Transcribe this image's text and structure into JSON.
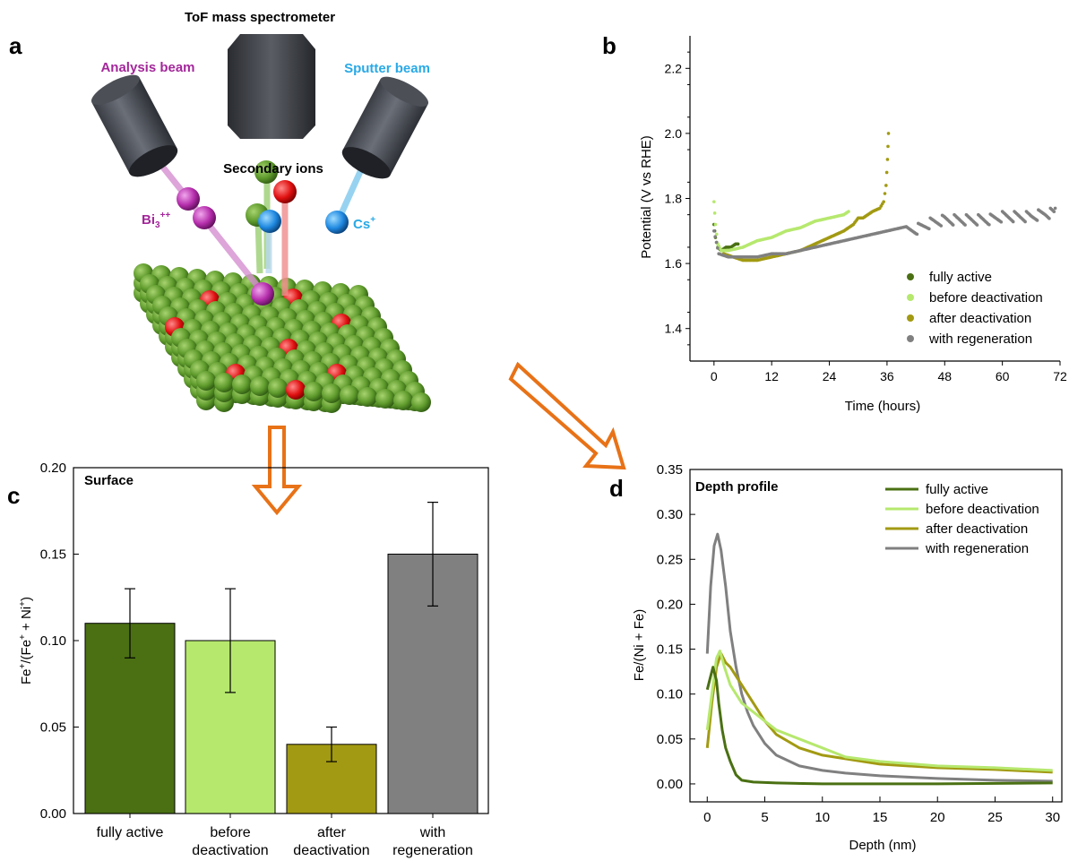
{
  "panel_labels": {
    "a": "a",
    "b": "b",
    "c": "c",
    "d": "d"
  },
  "diagram": {
    "spectrometer_label": "ToF mass spectrometer",
    "analysis_beam_label": "Analysis beam",
    "sputter_beam_label": "Sputter beam",
    "secondary_ions_label": "Secondary ions",
    "bi_label": "Bi",
    "bi_sub": "3",
    "bi_sup": "++",
    "cs_label": "Cs",
    "cs_sup": "+"
  },
  "colors": {
    "fully_active": "#4a7013",
    "before_deactivation": "#b6e86e",
    "after_deactivation": "#a29a12",
    "with_regeneration": "#808080",
    "arrow": "#e87217",
    "analysis_beam": "#a3279a",
    "sputter_beam": "#29a9e6"
  },
  "chart_data": [
    {
      "id": "b",
      "type": "scatter",
      "xlabel": "Time (hours)",
      "ylabel": "Potential (V vs RHE)",
      "xlim": [
        -5,
        72
      ],
      "ylim": [
        1.3,
        2.3
      ],
      "xticks": [
        0,
        12,
        24,
        36,
        48,
        60,
        72
      ],
      "yticks": [
        1.4,
        1.6,
        1.8,
        2.0,
        2.2
      ],
      "legend_position": "bottom-right",
      "series": [
        {
          "name": "fully active",
          "color": "#4a7013",
          "points": [
            [
              0,
              1.72
            ],
            [
              0.3,
              1.68
            ],
            [
              0.8,
              1.65
            ],
            [
              1.5,
              1.64
            ],
            [
              2.5,
              1.65
            ],
            [
              3.5,
              1.65
            ],
            [
              4.5,
              1.66
            ],
            [
              5,
              1.66
            ]
          ]
        },
        {
          "name": "before deactivation",
          "color": "#b6e86e",
          "points": [
            [
              0,
              1.79
            ],
            [
              0.3,
              1.72
            ],
            [
              0.8,
              1.66
            ],
            [
              1.5,
              1.64
            ],
            [
              3,
              1.64
            ],
            [
              6,
              1.65
            ],
            [
              9,
              1.67
            ],
            [
              12,
              1.68
            ],
            [
              15,
              1.7
            ],
            [
              18,
              1.71
            ],
            [
              21,
              1.73
            ],
            [
              24,
              1.74
            ],
            [
              27,
              1.75
            ],
            [
              28,
              1.76
            ]
          ]
        },
        {
          "name": "after deactivation",
          "color": "#a29a12",
          "points": [
            [
              2,
              1.63
            ],
            [
              4,
              1.62
            ],
            [
              6,
              1.61
            ],
            [
              9,
              1.61
            ],
            [
              12,
              1.62
            ],
            [
              15,
              1.63
            ],
            [
              18,
              1.64
            ],
            [
              21,
              1.66
            ],
            [
              24,
              1.68
            ],
            [
              27,
              1.7
            ],
            [
              29,
              1.72
            ],
            [
              30,
              1.74
            ],
            [
              31,
              1.74
            ],
            [
              33,
              1.76
            ],
            [
              34.5,
              1.77
            ],
            [
              35.3,
              1.79
            ],
            [
              35.8,
              1.84
            ],
            [
              36.1,
              1.92
            ],
            [
              36.3,
              2.0
            ]
          ]
        },
        {
          "name": "with regeneration",
          "color": "#808080",
          "points": [
            [
              0,
              1.7
            ],
            [
              1,
              1.63
            ],
            [
              3,
              1.62
            ],
            [
              6,
              1.62
            ],
            [
              9,
              1.62
            ],
            [
              12,
              1.63
            ],
            [
              15,
              1.63
            ],
            [
              18,
              1.64
            ],
            [
              21,
              1.65
            ],
            [
              24,
              1.66
            ],
            [
              27,
              1.67
            ],
            [
              30,
              1.68
            ],
            [
              33,
              1.69
            ],
            [
              36,
              1.7
            ],
            [
              39,
              1.71
            ],
            [
              42,
              1.72
            ],
            [
              45,
              1.74
            ],
            [
              48,
              1.75
            ],
            [
              51,
              1.75
            ],
            [
              54,
              1.75
            ],
            [
              57,
              1.75
            ],
            [
              60,
              1.76
            ],
            [
              63,
              1.76
            ],
            [
              66,
              1.76
            ],
            [
              69,
              1.77
            ],
            [
              71,
              1.77
            ]
          ]
        }
      ]
    },
    {
      "id": "c",
      "type": "bar",
      "title": "Surface",
      "ylabel": "Fe⁺/(Fe⁺ + Ni⁺)",
      "ylim": [
        0,
        0.2
      ],
      "yticks": [
        "0.00",
        "0.05",
        "0.10",
        "0.15",
        "0.20"
      ],
      "categories": [
        [
          "fully active"
        ],
        [
          "before",
          "deactivation"
        ],
        [
          "after",
          "deactivation"
        ],
        [
          "with",
          "regeneration"
        ]
      ],
      "values": [
        0.11,
        0.1,
        0.04,
        0.15
      ],
      "errors": [
        0.02,
        0.03,
        0.01,
        0.03
      ],
      "colors": [
        "#4a7013",
        "#b6e86e",
        "#a29a12",
        "#808080"
      ]
    },
    {
      "id": "d",
      "type": "line",
      "title": "Depth profile",
      "xlabel": "Depth (nm)",
      "ylabel": "Fe/(Ni + Fe)",
      "xlim": [
        -1.5,
        30.8
      ],
      "ylim": [
        -0.02,
        0.35
      ],
      "xticks": [
        0,
        5,
        10,
        15,
        20,
        25,
        30
      ],
      "yticks": [
        "0.00",
        "0.05",
        "0.10",
        "0.15",
        "0.20",
        "0.25",
        "0.30",
        "0.35"
      ],
      "legend_position": "top-right",
      "series": [
        {
          "name": "fully active",
          "color": "#4a7013",
          "points": [
            [
              0,
              0.105
            ],
            [
              0.3,
              0.12
            ],
            [
              0.5,
              0.13
            ],
            [
              0.8,
              0.115
            ],
            [
              1.0,
              0.09
            ],
            [
              1.3,
              0.06
            ],
            [
              1.6,
              0.04
            ],
            [
              2.0,
              0.025
            ],
            [
              2.5,
              0.01
            ],
            [
              3,
              0.004
            ],
            [
              4,
              0.002
            ],
            [
              6,
              0.001
            ],
            [
              10,
              0.0
            ],
            [
              20,
              0.0
            ],
            [
              30,
              0.001
            ]
          ]
        },
        {
          "name": "before deactivation",
          "color": "#b6e86e",
          "points": [
            [
              0,
              0.06
            ],
            [
              0.4,
              0.1
            ],
            [
              0.8,
              0.14
            ],
            [
              1.1,
              0.148
            ],
            [
              1.5,
              0.13
            ],
            [
              2,
              0.11
            ],
            [
              3,
              0.09
            ],
            [
              4,
              0.08
            ],
            [
              5,
              0.07
            ],
            [
              6,
              0.06
            ],
            [
              8,
              0.05
            ],
            [
              10,
              0.04
            ],
            [
              12,
              0.03
            ],
            [
              15,
              0.025
            ],
            [
              20,
              0.02
            ],
            [
              25,
              0.018
            ],
            [
              30,
              0.015
            ]
          ]
        },
        {
          "name": "after deactivation",
          "color": "#a29a12",
          "points": [
            [
              0,
              0.04
            ],
            [
              0.4,
              0.09
            ],
            [
              0.8,
              0.13
            ],
            [
              1.2,
              0.145
            ],
            [
              1.6,
              0.135
            ],
            [
              2,
              0.13
            ],
            [
              3,
              0.11
            ],
            [
              4,
              0.09
            ],
            [
              5,
              0.07
            ],
            [
              6,
              0.055
            ],
            [
              8,
              0.04
            ],
            [
              10,
              0.032
            ],
            [
              12,
              0.028
            ],
            [
              15,
              0.022
            ],
            [
              20,
              0.018
            ],
            [
              25,
              0.016
            ],
            [
              30,
              0.013
            ]
          ]
        },
        {
          "name": "with regeneration",
          "color": "#808080",
          "points": [
            [
              0,
              0.145
            ],
            [
              0.3,
              0.22
            ],
            [
              0.6,
              0.265
            ],
            [
              0.9,
              0.278
            ],
            [
              1.2,
              0.26
            ],
            [
              1.6,
              0.22
            ],
            [
              2,
              0.17
            ],
            [
              2.5,
              0.13
            ],
            [
              3,
              0.1
            ],
            [
              3.5,
              0.08
            ],
            [
              4,
              0.065
            ],
            [
              5,
              0.045
            ],
            [
              6,
              0.032
            ],
            [
              8,
              0.02
            ],
            [
              10,
              0.015
            ],
            [
              12,
              0.012
            ],
            [
              15,
              0.009
            ],
            [
              20,
              0.006
            ],
            [
              25,
              0.004
            ],
            [
              30,
              0.003
            ]
          ]
        }
      ]
    }
  ]
}
